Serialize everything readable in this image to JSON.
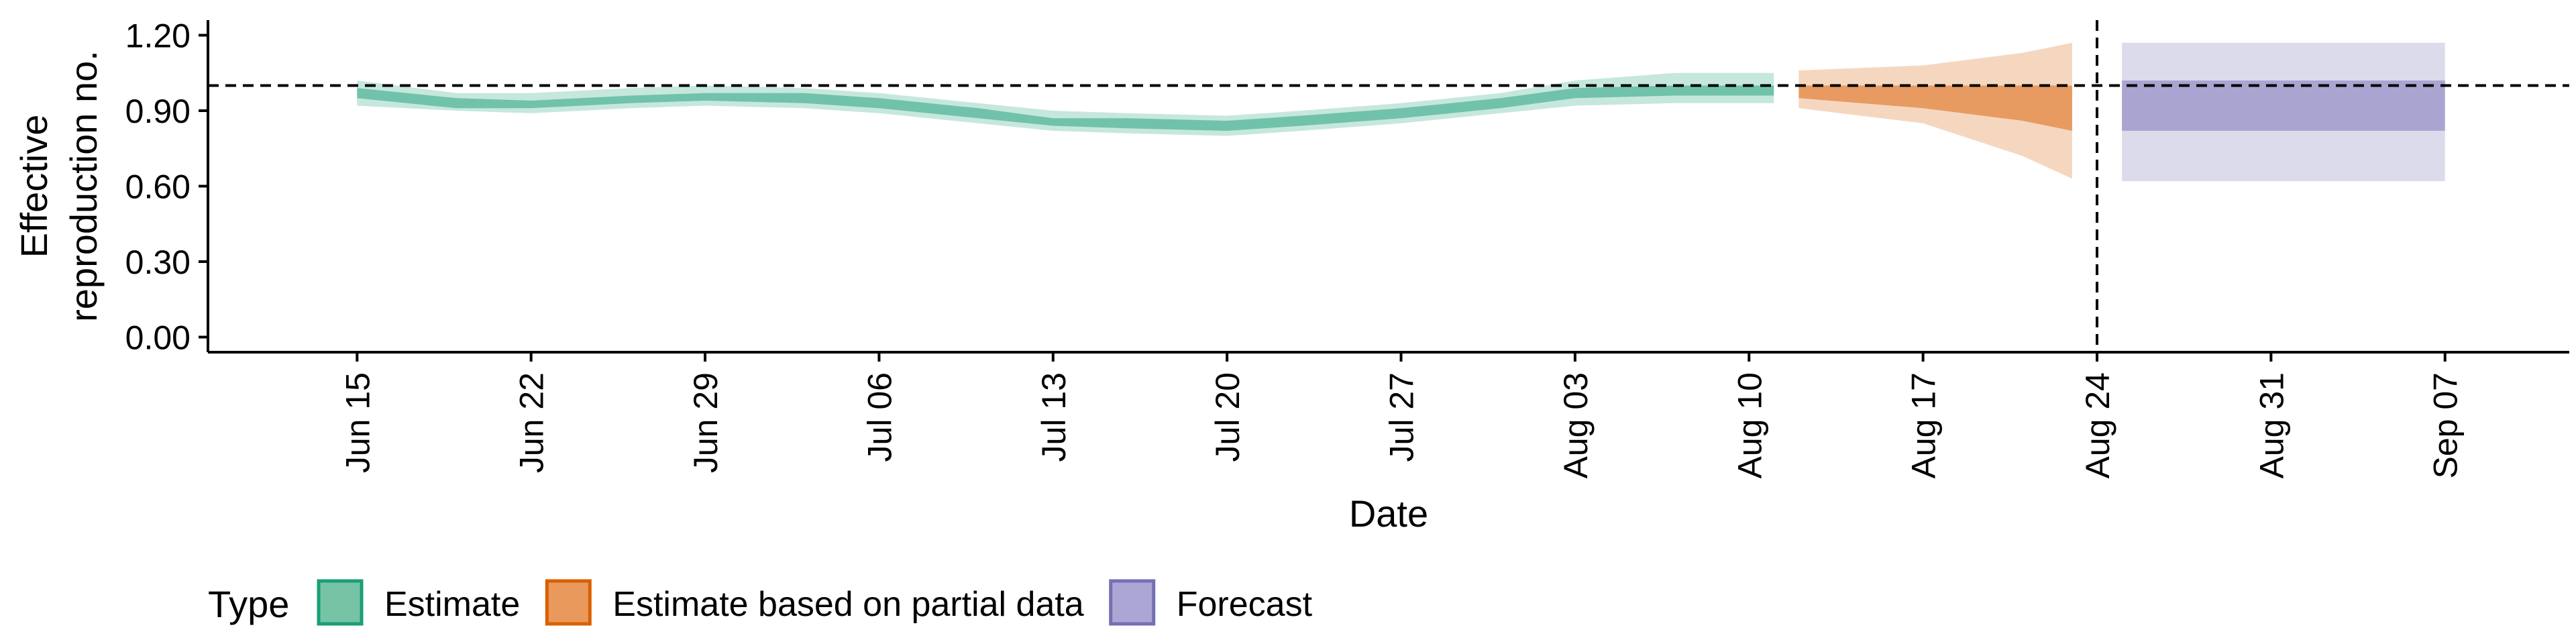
{
  "chart_data": {
    "type": "area",
    "xlabel": "Date",
    "ylabel": [
      "Effective",
      "reproduction no."
    ],
    "ylim": [
      0,
      1.2
    ],
    "xlim": [
      "2020-06-09",
      "2020-09-12"
    ],
    "y_ticks": [
      "0.00",
      "0.30",
      "0.60",
      "0.90",
      "1.20"
    ],
    "x_ticks": [
      {
        "date": "2020-06-15",
        "label": "Jun 15"
      },
      {
        "date": "2020-06-22",
        "label": "Jun 22"
      },
      {
        "date": "2020-06-29",
        "label": "Jun 29"
      },
      {
        "date": "2020-07-06",
        "label": "Jul 06"
      },
      {
        "date": "2020-07-13",
        "label": "Jul 13"
      },
      {
        "date": "2020-07-20",
        "label": "Jul 20"
      },
      {
        "date": "2020-07-27",
        "label": "Jul 27"
      },
      {
        "date": "2020-08-03",
        "label": "Aug 03"
      },
      {
        "date": "2020-08-10",
        "label": "Aug 10"
      },
      {
        "date": "2020-08-17",
        "label": "Aug 17"
      },
      {
        "date": "2020-08-24",
        "label": "Aug 24"
      },
      {
        "date": "2020-08-31",
        "label": "Aug 31"
      },
      {
        "date": "2020-09-07",
        "label": "Sep 07"
      }
    ],
    "reference_hline": 1.0,
    "reference_vline": "2020-08-24",
    "grid": false,
    "legend_position": "bottom-left",
    "legend_title": "Type",
    "series": [
      {
        "name": "Estimate",
        "color": "#1b9e77",
        "points": [
          {
            "date": "2020-06-15",
            "lower90": 0.92,
            "lower50": 0.95,
            "upper50": 0.99,
            "upper90": 1.02
          },
          {
            "date": "2020-06-19",
            "lower90": 0.9,
            "lower50": 0.91,
            "upper50": 0.95,
            "upper90": 0.97
          },
          {
            "date": "2020-06-22",
            "lower90": 0.89,
            "lower50": 0.91,
            "upper50": 0.94,
            "upper90": 0.97
          },
          {
            "date": "2020-06-26",
            "lower90": 0.91,
            "lower50": 0.93,
            "upper50": 0.96,
            "upper90": 0.99
          },
          {
            "date": "2020-06-29",
            "lower90": 0.92,
            "lower50": 0.94,
            "upper50": 0.97,
            "upper90": 1.0
          },
          {
            "date": "2020-07-03",
            "lower90": 0.91,
            "lower50": 0.93,
            "upper50": 0.97,
            "upper90": 0.99
          },
          {
            "date": "2020-07-06",
            "lower90": 0.89,
            "lower50": 0.91,
            "upper50": 0.95,
            "upper90": 0.97
          },
          {
            "date": "2020-07-10",
            "lower90": 0.85,
            "lower50": 0.87,
            "upper50": 0.91,
            "upper90": 0.93
          },
          {
            "date": "2020-07-13",
            "lower90": 0.82,
            "lower50": 0.84,
            "upper50": 0.87,
            "upper90": 0.9
          },
          {
            "date": "2020-07-16",
            "lower90": 0.81,
            "lower50": 0.83,
            "upper50": 0.87,
            "upper90": 0.89
          },
          {
            "date": "2020-07-20",
            "lower90": 0.8,
            "lower50": 0.82,
            "upper50": 0.86,
            "upper90": 0.88
          },
          {
            "date": "2020-07-23",
            "lower90": 0.82,
            "lower50": 0.84,
            "upper50": 0.88,
            "upper90": 0.9
          },
          {
            "date": "2020-07-27",
            "lower90": 0.85,
            "lower50": 0.87,
            "upper50": 0.91,
            "upper90": 0.93
          },
          {
            "date": "2020-07-31",
            "lower90": 0.89,
            "lower50": 0.91,
            "upper50": 0.95,
            "upper90": 0.97
          },
          {
            "date": "2020-08-03",
            "lower90": 0.92,
            "lower50": 0.95,
            "upper50": 0.99,
            "upper90": 1.02
          },
          {
            "date": "2020-08-07",
            "lower90": 0.93,
            "lower50": 0.96,
            "upper50": 1.0,
            "upper90": 1.05
          },
          {
            "date": "2020-08-10",
            "lower90": 0.93,
            "lower50": 0.96,
            "upper50": 1.0,
            "upper90": 1.05
          },
          {
            "date": "2020-08-11",
            "lower90": 0.93,
            "lower50": 0.96,
            "upper50": 1.0,
            "upper90": 1.05
          }
        ]
      },
      {
        "name": "Estimate based on partial data",
        "color": "#d95f02",
        "points": [
          {
            "date": "2020-08-12",
            "lower90": 0.91,
            "lower50": 0.95,
            "upper50": 1.0,
            "upper90": 1.06
          },
          {
            "date": "2020-08-17",
            "lower90": 0.85,
            "lower50": 0.91,
            "upper50": 1.0,
            "upper90": 1.08
          },
          {
            "date": "2020-08-21",
            "lower90": 0.72,
            "lower50": 0.86,
            "upper50": 1.0,
            "upper90": 1.13
          },
          {
            "date": "2020-08-23",
            "lower90": 0.63,
            "lower50": 0.82,
            "upper50": 1.0,
            "upper90": 1.17
          }
        ]
      },
      {
        "name": "Forecast",
        "color": "#7570b3",
        "points": [
          {
            "date": "2020-08-25",
            "lower90": 0.62,
            "lower50": 0.82,
            "upper50": 1.02,
            "upper90": 1.17
          },
          {
            "date": "2020-09-07",
            "lower90": 0.62,
            "lower50": 0.82,
            "upper50": 1.02,
            "upper90": 1.17
          }
        ]
      }
    ]
  },
  "legend": {
    "title": "Type",
    "items": [
      {
        "label": "Estimate",
        "fill": "#76c3a6",
        "border": "#1b9e77"
      },
      {
        "label": "Estimate based on partial data",
        "fill": "#e8995b",
        "border": "#d95f02"
      },
      {
        "label": "Forecast",
        "fill": "#aba6d4",
        "border": "#7570b3"
      }
    ]
  }
}
